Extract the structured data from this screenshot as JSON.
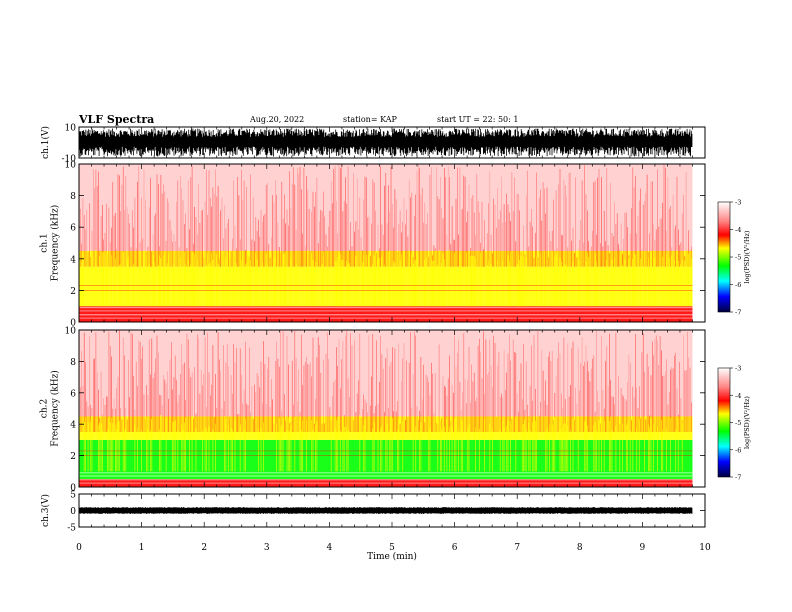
{
  "header": {
    "title": "VLF Spectra",
    "date": "Aug.20, 2022",
    "station": "station= KAP",
    "start": "start UT =   22: 50: 1"
  },
  "chart_data": [
    {
      "type": "line",
      "panel": "ch1-waveform",
      "ylabel": "ch.1(V)",
      "ylim": [
        -10,
        10
      ],
      "yticks": [
        "10",
        "-10"
      ],
      "xlim": [
        0,
        10
      ],
      "color": "#000000"
    },
    {
      "type": "heatmap",
      "panel": "ch1-spectrogram",
      "ylabel": "ch.1\nFrequency (kHz)",
      "ylim": [
        0,
        10
      ],
      "yticks": [
        "0",
        "2",
        "4",
        "6",
        "8",
        "10"
      ],
      "xlim": [
        0,
        9.8
      ],
      "profile": [
        {
          "freq_khz": [
            0.0,
            0.5
          ],
          "log_psd": -3.6
        },
        {
          "freq_khz": [
            0.5,
            1.0
          ],
          "log_psd": -3.5
        },
        {
          "freq_khz": [
            1.0,
            3.5
          ],
          "log_psd": -4.2
        },
        {
          "freq_khz": [
            3.5,
            4.5
          ],
          "log_psd": -3.9
        },
        {
          "freq_khz": [
            4.5,
            10.0
          ],
          "log_psd": -3.4
        }
      ],
      "colorbar": {
        "label": "log(PSD)(V²/Hz)",
        "ticks": [
          "-3",
          "-4",
          "-5",
          "-6",
          "-7"
        ],
        "range": [
          -7,
          -3
        ]
      }
    },
    {
      "type": "heatmap",
      "panel": "ch2-spectrogram",
      "ylabel": "ch.2\nFrequency (kHz)",
      "ylim": [
        0,
        10
      ],
      "yticks": [
        "0",
        "2",
        "4",
        "6",
        "8",
        "10"
      ],
      "xlim": [
        0,
        9.8
      ],
      "profile": [
        {
          "freq_khz": [
            0.0,
            0.5
          ],
          "log_psd": -3.6
        },
        {
          "freq_khz": [
            0.5,
            3.0
          ],
          "log_psd": -4.9
        },
        {
          "freq_khz": [
            3.0,
            4.5
          ],
          "log_psd": -4.1
        },
        {
          "freq_khz": [
            4.5,
            10.0
          ],
          "log_psd": -3.4
        }
      ],
      "colorbar": {
        "label": "log(PSD)(V²/Hz)",
        "ticks": [
          "-3",
          "-4",
          "-5",
          "-6",
          "-7"
        ],
        "range": [
          -7,
          -3
        ]
      }
    },
    {
      "type": "line",
      "panel": "ch3-waveform",
      "ylabel": "ch.3(V)",
      "ylim": [
        -5,
        5
      ],
      "yticks": [
        "5",
        "0",
        "-5"
      ],
      "xlim": [
        0,
        10
      ],
      "color": "#000000"
    }
  ],
  "xaxis": {
    "label": "Time (min)",
    "ticks": [
      "0",
      "1",
      "2",
      "3",
      "4",
      "5",
      "6",
      "7",
      "8",
      "9",
      "10"
    ],
    "range": [
      0,
      10
    ]
  },
  "colors": {
    "red": "#ff0000",
    "yellow": "#ffff00",
    "green": "#00ff00",
    "blue": "#0000ff",
    "black": "#000000"
  }
}
